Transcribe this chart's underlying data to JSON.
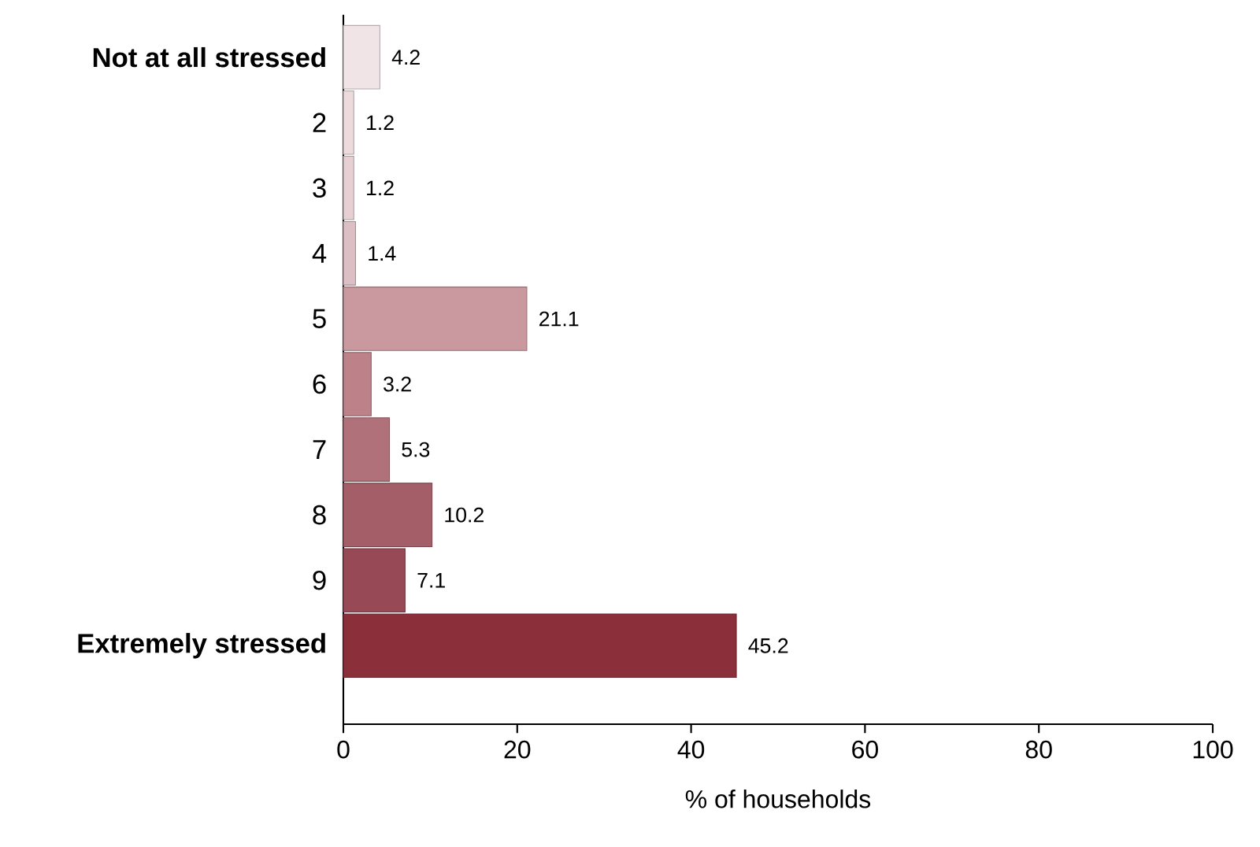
{
  "chart_data": {
    "type": "bar",
    "orientation": "horizontal",
    "xlabel": "% of households",
    "categories": [
      "Not at all stressed",
      "2",
      "3",
      "4",
      "5",
      "6",
      "7",
      "8",
      "9",
      "Extremely stressed"
    ],
    "values": [
      4.2,
      1.2,
      1.2,
      1.4,
      21.1,
      3.2,
      5.3,
      10.2,
      7.1,
      45.2
    ],
    "colors": [
      "#f1e4e6",
      "#ecdadd",
      "#e6d0d4",
      "#dcbfc4",
      "#c9999f",
      "#bd8189",
      "#b0717a",
      "#a45e68",
      "#974a55",
      "#8b2f3b"
    ],
    "xlim": [
      0,
      100
    ],
    "xticks": [
      0,
      20,
      40,
      60,
      80,
      100
    ],
    "data_labels": true
  }
}
